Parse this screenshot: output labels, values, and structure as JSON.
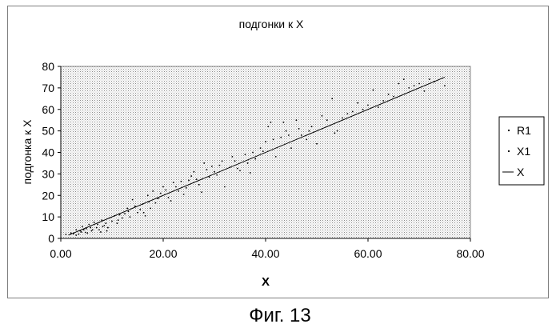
{
  "figure_caption": "Фиг. 13",
  "chart_data": {
    "type": "scatter",
    "title": "подгонки к X",
    "xlabel": "X",
    "ylabel": "подгонка к X",
    "xlim": [
      0,
      80
    ],
    "ylim": [
      0,
      80
    ],
    "x_ticks": [
      "0.00",
      "20.00",
      "40.00",
      "60.00",
      "80.00"
    ],
    "y_ticks": [
      "0",
      "10",
      "20",
      "30",
      "40",
      "50",
      "60",
      "70",
      "80"
    ],
    "plot_background": "dotted grey",
    "legend_position": "right",
    "legend": [
      "R1",
      "X1",
      "X"
    ],
    "series": [
      {
        "name": "R1",
        "marker": "dot",
        "points": [
          [
            1.0,
            1.8
          ],
          [
            2.5,
            2.2
          ],
          [
            3.0,
            4.0
          ],
          [
            3.5,
            2.0
          ],
          [
            4.0,
            3.0
          ],
          [
            4.2,
            5.5
          ],
          [
            4.8,
            2.8
          ],
          [
            5.0,
            4.5
          ],
          [
            5.5,
            6.5
          ],
          [
            6.0,
            3.5
          ],
          [
            6.5,
            7.5
          ],
          [
            7.0,
            5.0
          ],
          [
            7.5,
            4.0
          ],
          [
            8.0,
            8.5
          ],
          [
            8.5,
            6.0
          ],
          [
            9.0,
            3.5
          ],
          [
            9.5,
            9.5
          ],
          [
            10.0,
            8.0
          ],
          [
            11.0,
            7.0
          ],
          [
            11.5,
            11.0
          ],
          [
            12.0,
            9.5
          ],
          [
            13.0,
            14.0
          ],
          [
            13.5,
            10.0
          ],
          [
            14.0,
            18.0
          ],
          [
            15.0,
            12.0
          ],
          [
            16.0,
            16.0
          ],
          [
            16.5,
            10.5
          ],
          [
            17.0,
            20.0
          ],
          [
            17.5,
            14.0
          ],
          [
            18.0,
            22.0
          ],
          [
            19.0,
            18.5
          ],
          [
            20.0,
            24.0
          ],
          [
            21.0,
            19.0
          ],
          [
            22.0,
            26.0
          ],
          [
            23.0,
            22.0
          ],
          [
            24.0,
            20.5
          ],
          [
            25.0,
            27.0
          ],
          [
            26.0,
            31.0
          ],
          [
            27.0,
            25.0
          ],
          [
            28.0,
            35.0
          ],
          [
            29.0,
            28.5
          ],
          [
            30.0,
            31.0
          ],
          [
            31.0,
            34.0
          ],
          [
            32.0,
            24.0
          ],
          [
            33.0,
            33.0
          ],
          [
            34.0,
            36.0
          ],
          [
            35.0,
            31.5
          ],
          [
            36.0,
            39.0
          ],
          [
            37.0,
            30.5
          ],
          [
            38.0,
            37.0
          ],
          [
            39.0,
            42.0
          ],
          [
            40.0,
            45.0
          ],
          [
            41.0,
            54.0
          ],
          [
            42.0,
            38.0
          ],
          [
            43.0,
            47.0
          ],
          [
            44.0,
            50.0
          ],
          [
            45.0,
            42.0
          ],
          [
            46.0,
            55.0
          ],
          [
            47.0,
            48.0
          ],
          [
            48.0,
            46.0
          ],
          [
            49.0,
            52.0
          ],
          [
            50.0,
            44.0
          ],
          [
            52.0,
            55.0
          ],
          [
            53.0,
            65.0
          ],
          [
            54.0,
            50.0
          ],
          [
            55.0,
            56.0
          ],
          [
            57.0,
            59.0
          ],
          [
            58.0,
            63.0
          ],
          [
            60.0,
            62.0
          ],
          [
            61.0,
            69.0
          ],
          [
            63.0,
            64.0
          ],
          [
            65.0,
            66.0
          ],
          [
            67.0,
            74.0
          ],
          [
            69.0,
            71.0
          ],
          [
            71.0,
            68.5
          ],
          [
            73.0,
            73.0
          ],
          [
            75.0,
            71.0
          ]
        ]
      },
      {
        "name": "X1",
        "marker": "dot",
        "points": [
          [
            2.0,
            2.5
          ],
          [
            3.0,
            1.5
          ],
          [
            3.8,
            3.5
          ],
          [
            4.5,
            4.0
          ],
          [
            5.2,
            2.5
          ],
          [
            5.8,
            5.0
          ],
          [
            6.2,
            4.0
          ],
          [
            7.2,
            6.5
          ],
          [
            7.8,
            3.0
          ],
          [
            8.2,
            5.5
          ],
          [
            8.8,
            7.0
          ],
          [
            9.2,
            5.0
          ],
          [
            10.5,
            10.5
          ],
          [
            11.2,
            8.5
          ],
          [
            12.5,
            11.5
          ],
          [
            13.2,
            12.5
          ],
          [
            14.5,
            15.0
          ],
          [
            15.5,
            13.5
          ],
          [
            16.2,
            12.0
          ],
          [
            17.2,
            17.0
          ],
          [
            18.5,
            16.5
          ],
          [
            19.5,
            21.0
          ],
          [
            20.5,
            22.5
          ],
          [
            21.5,
            17.5
          ],
          [
            22.5,
            24.0
          ],
          [
            23.5,
            26.5
          ],
          [
            24.5,
            23.5
          ],
          [
            25.5,
            29.0
          ],
          [
            26.5,
            27.5
          ],
          [
            27.5,
            21.5
          ],
          [
            28.5,
            32.0
          ],
          [
            29.5,
            33.5
          ],
          [
            30.5,
            29.5
          ],
          [
            31.5,
            36.0
          ],
          [
            33.5,
            38.0
          ],
          [
            34.5,
            32.5
          ],
          [
            36.5,
            35.0
          ],
          [
            37.5,
            40.0
          ],
          [
            39.5,
            40.5
          ],
          [
            40.5,
            52.0
          ],
          [
            41.5,
            46.0
          ],
          [
            43.5,
            54.0
          ],
          [
            44.5,
            48.0
          ],
          [
            46.5,
            51.0
          ],
          [
            48.5,
            50.0
          ],
          [
            51.0,
            57.0
          ],
          [
            53.5,
            49.0
          ],
          [
            56.0,
            58.0
          ],
          [
            59.0,
            60.0
          ],
          [
            62.0,
            61.0
          ],
          [
            64.0,
            67.0
          ],
          [
            66.0,
            72.0
          ],
          [
            68.0,
            70.0
          ],
          [
            70.0,
            72.0
          ],
          [
            72.0,
            74.0
          ]
        ]
      },
      {
        "name": "X",
        "type": "line",
        "points": [
          [
            1.5,
            1.5
          ],
          [
            75.0,
            75.0
          ]
        ]
      }
    ]
  }
}
